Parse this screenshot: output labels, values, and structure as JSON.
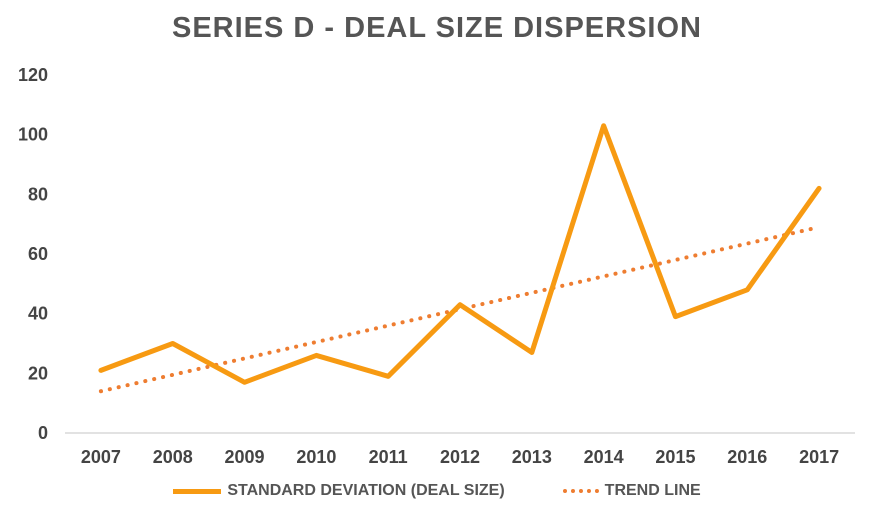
{
  "chart_data": {
    "type": "line",
    "title": "SERIES D - DEAL SIZE DISPERSION",
    "xlabel": "",
    "ylabel": "",
    "categories": [
      "2007",
      "2008",
      "2009",
      "2010",
      "2011",
      "2012",
      "2013",
      "2014",
      "2015",
      "2016",
      "2017"
    ],
    "ylim": [
      0,
      120
    ],
    "yticks": [
      "0",
      "20",
      "40",
      "60",
      "80",
      "100",
      "120"
    ],
    "grid": false,
    "legend_position": "bottom",
    "series": [
      {
        "name": "STANDARD DEVIATION (DEAL SIZE)",
        "style": "solid",
        "color": "#f79a12",
        "values": [
          21,
          30,
          17,
          26,
          19,
          43,
          27,
          103,
          39,
          48,
          82
        ]
      },
      {
        "name": "TREND LINE",
        "style": "dotted",
        "color": "#ee7d31",
        "values": [
          14,
          19.5,
          25,
          30.5,
          36,
          41.5,
          47,
          52.5,
          58,
          63.5,
          69
        ]
      }
    ]
  }
}
